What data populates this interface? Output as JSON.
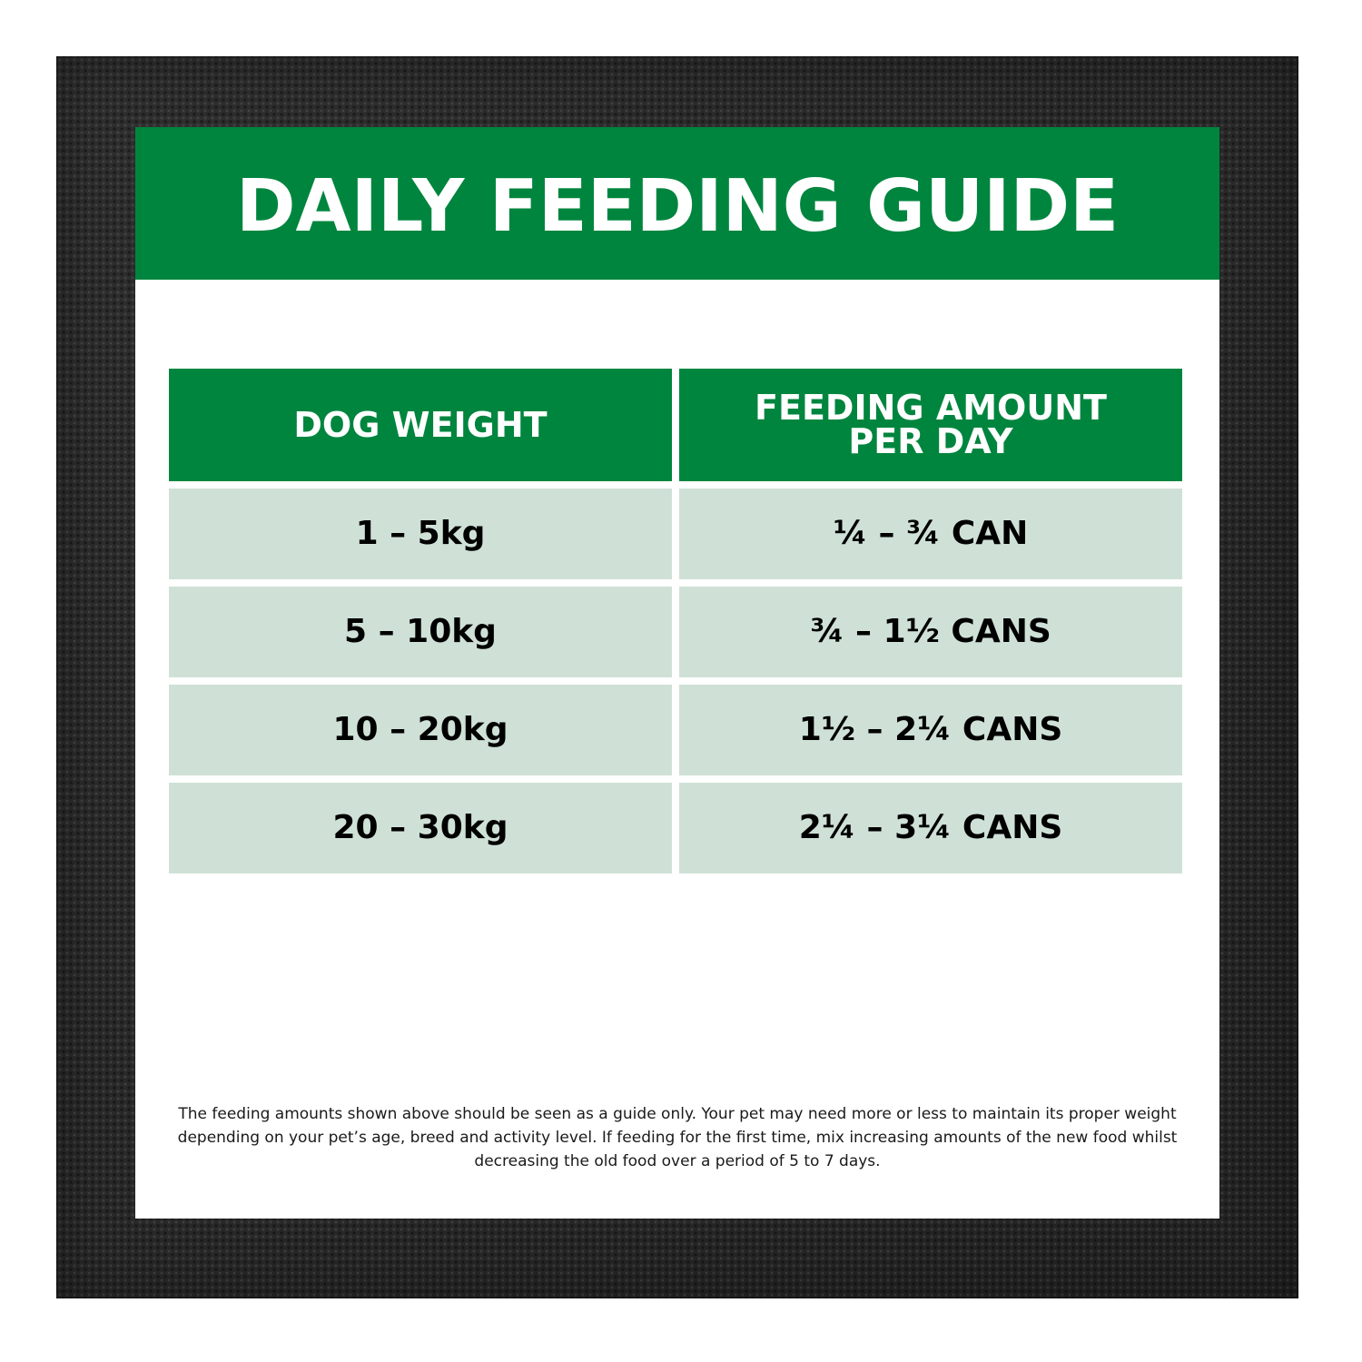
{
  "guide": {
    "title": "DAILY FEEDING GUIDE"
  },
  "table": {
    "headers": [
      "DOG WEIGHT",
      "FEEDING AMOUNT PER DAY"
    ],
    "rows": [
      {
        "dog_weight": "1 – 5kg",
        "feeding_amount": "¼ – ¾ CAN"
      },
      {
        "dog_weight": "5 – 10kg",
        "feeding_amount": "¾ – 1½ CANS"
      },
      {
        "dog_weight": "10 – 20kg",
        "feeding_amount": "1½ – 2¼ CANS"
      },
      {
        "dog_weight": "20 – 30kg",
        "feeding_amount": "2¼ – 3¼ CANS"
      }
    ]
  },
  "notes": {
    "disclaimer": "The feeding amounts shown above should be seen as a guide only. Your pet may need more or less to maintain its proper weight depending on your pet’s age, breed and activity level. If feeding for the first time, mix increasing amounts of the new food whilst decreasing the old food over a period of 5 to 7 days."
  },
  "colors": {
    "brand_green": "#00853e",
    "pale_green": "#cfe1d7",
    "dark_background": "#262626"
  }
}
